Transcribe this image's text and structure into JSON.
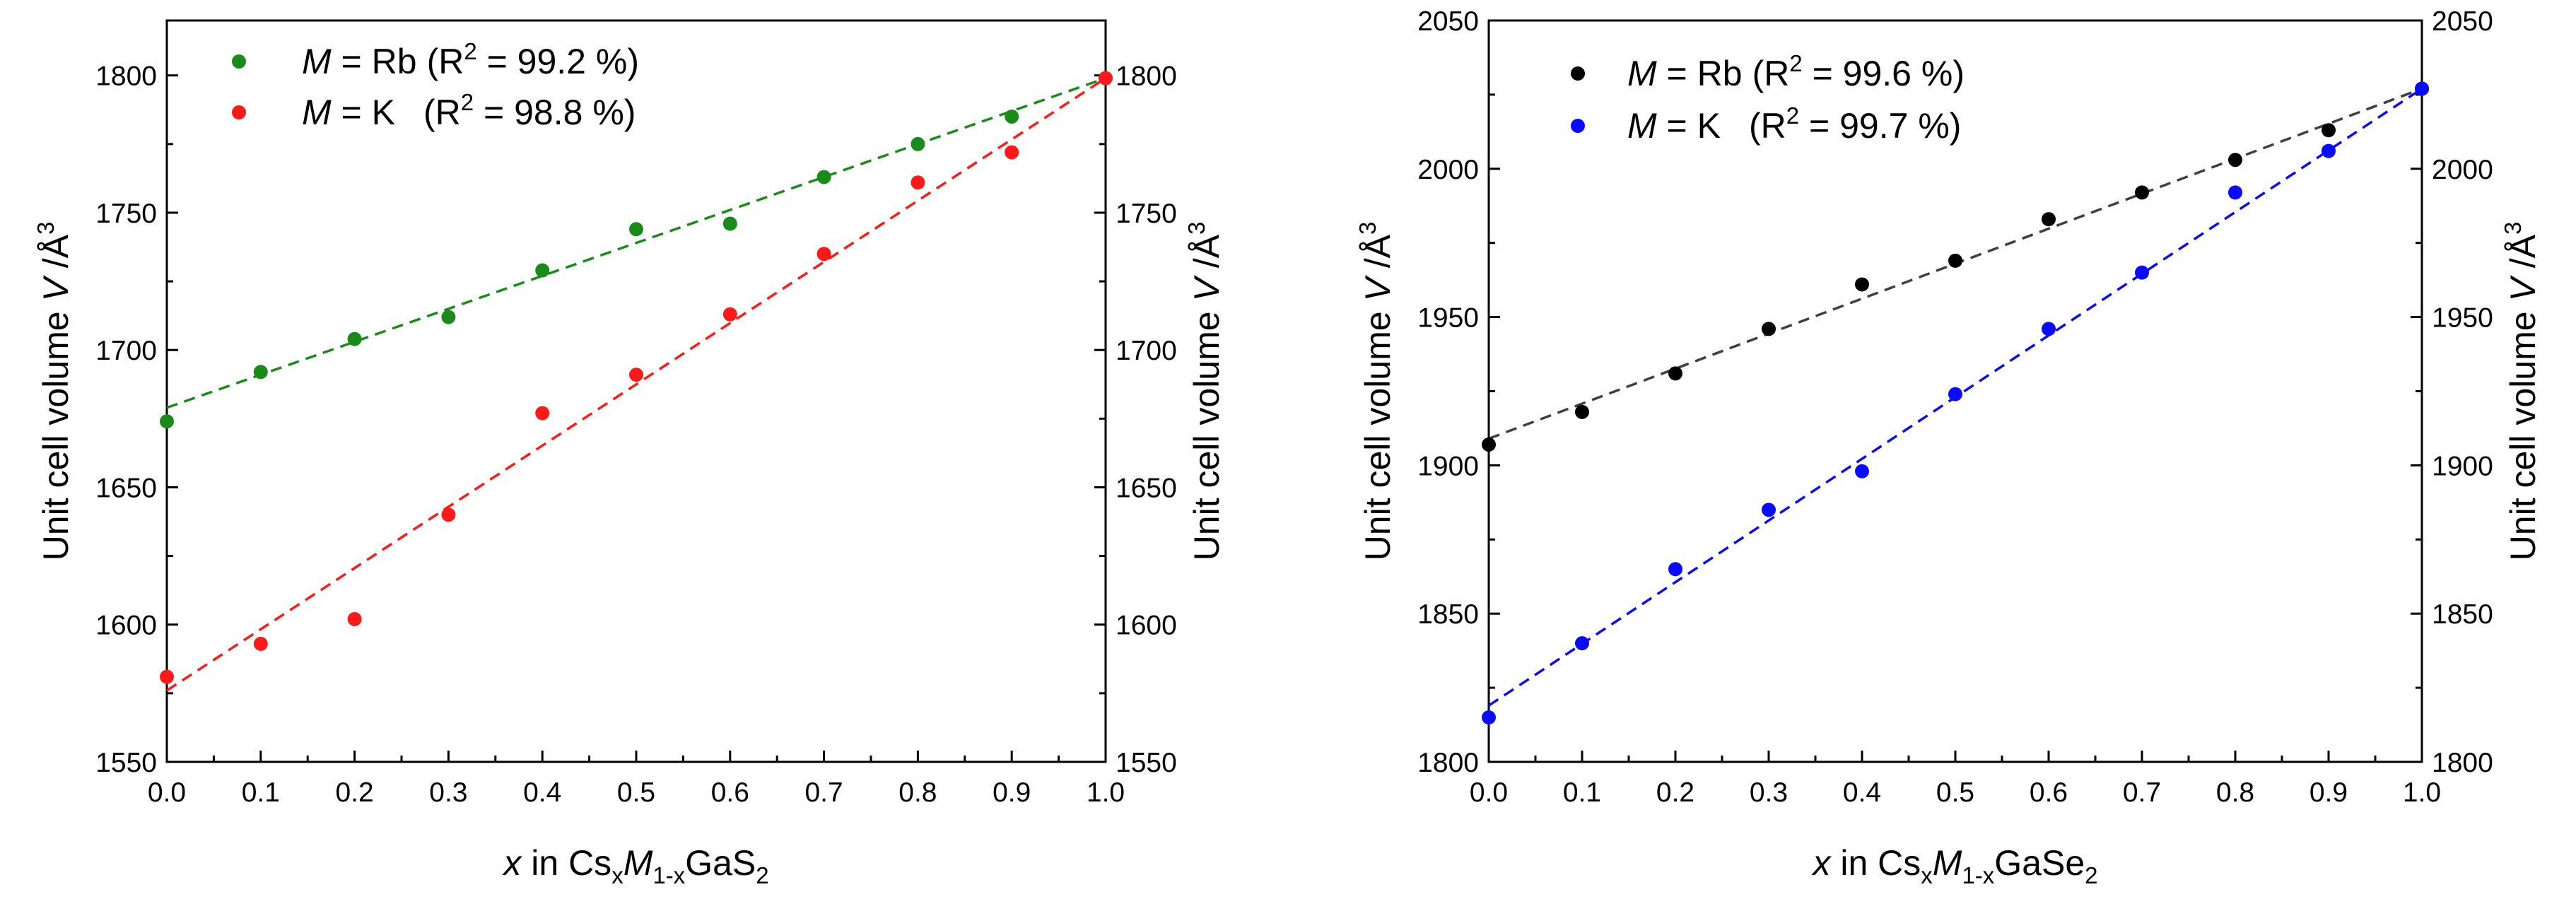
{
  "chart_data": [
    {
      "type": "scatter",
      "panel": "left",
      "xlabel": {
        "var": "x",
        "pre": " in Cs",
        "sub1": "x",
        "mid": "M",
        "sub2": "1-x",
        "post": "GaS",
        "sub3": "2"
      },
      "ylabel": {
        "pre": "Unit cell volume ",
        "var": "V",
        "post": " /Å",
        "sup": "3"
      },
      "xlim": [
        0.0,
        1.0
      ],
      "ylim": [
        1550,
        1820
      ],
      "xticks": [
        "0.0",
        "0.1",
        "0.2",
        "0.3",
        "0.4",
        "0.5",
        "0.6",
        "0.7",
        "0.8",
        "0.9",
        "1.0"
      ],
      "yticks": [
        "1550",
        "1600",
        "1650",
        "1700",
        "1750",
        "1800"
      ],
      "series": [
        {
          "name": "Rb",
          "legend": {
            "var": "M",
            "eq": " = Rb",
            "stat": "(R",
            "sup": "2",
            "tail": " = 99.2 %)"
          },
          "color": "#1a8a1a",
          "x": [
            0.0,
            0.1,
            0.2,
            0.3,
            0.4,
            0.5,
            0.6,
            0.7,
            0.8,
            0.9,
            1.0
          ],
          "y": [
            1674,
            1692,
            1704,
            1712,
            1729,
            1744,
            1746,
            1763,
            1775,
            1785,
            1799
          ],
          "fit": [
            1679,
            1799
          ]
        },
        {
          "name": "K",
          "legend": {
            "var": "M",
            "eq": " = K",
            "stat": "(R",
            "sup": "2",
            "tail": " = 98.8 %)"
          },
          "color": "#ff1a1a",
          "x": [
            0.0,
            0.1,
            0.2,
            0.3,
            0.4,
            0.5,
            0.6,
            0.7,
            0.8,
            0.9,
            1.0
          ],
          "y": [
            1581,
            1593,
            1602,
            1640,
            1677,
            1691,
            1713,
            1735,
            1761,
            1772,
            1799
          ],
          "fit": [
            1576,
            1799
          ]
        }
      ]
    },
    {
      "type": "scatter",
      "panel": "right",
      "xlabel": {
        "var": "x",
        "pre": " in Cs",
        "sub1": "x",
        "mid": "M",
        "sub2": "1-x",
        "post": "GaSe",
        "sub3": "2"
      },
      "ylabel": {
        "pre": "Unit cell volume ",
        "var": "V",
        "post": " /Å",
        "sup": "3"
      },
      "xlim": [
        0.0,
        1.0
      ],
      "ylim": [
        1800,
        2050
      ],
      "xticks": [
        "0.0",
        "0.1",
        "0.2",
        "0.3",
        "0.4",
        "0.5",
        "0.6",
        "0.7",
        "0.8",
        "0.9",
        "1.0"
      ],
      "yticks": [
        "1800",
        "1850",
        "1900",
        "1950",
        "2000",
        "2050"
      ],
      "series": [
        {
          "name": "Rb",
          "legend": {
            "var": "M",
            "eq": " = Rb",
            "stat": "(R",
            "sup": "2",
            "tail": " = 99.6 %)"
          },
          "color": "#000000",
          "x": [
            0.0,
            0.1,
            0.2,
            0.3,
            0.4,
            0.5,
            0.6,
            0.7,
            0.8,
            0.9,
            1.0
          ],
          "y": [
            1907,
            1918,
            1931,
            1946,
            1961,
            1969,
            1983,
            1992,
            2003,
            2013,
            2027
          ],
          "fit": [
            1909,
            2027
          ]
        },
        {
          "name": "K",
          "legend": {
            "var": "M",
            "eq": " = K",
            "stat": "(R",
            "sup": "2",
            "tail": " = 99.7 %)"
          },
          "color": "#0a0aff",
          "x": [
            0.0,
            0.1,
            0.2,
            0.3,
            0.4,
            0.5,
            0.6,
            0.7,
            0.8,
            0.9,
            1.0
          ],
          "y": [
            1815,
            1840,
            1865,
            1885,
            1898,
            1924,
            1946,
            1965,
            1992,
            2006,
            2027
          ],
          "fit": [
            1819,
            2027
          ]
        }
      ]
    }
  ]
}
